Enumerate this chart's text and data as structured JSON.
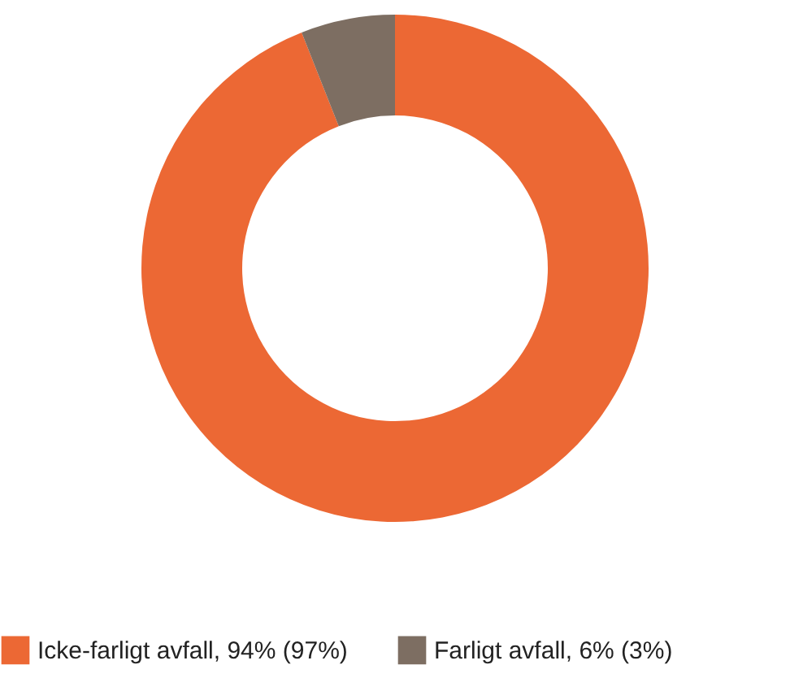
{
  "chart_data": {
    "type": "donut",
    "categories": [
      "Icke-farligt avfall, 94% (97%)",
      "Farligt avfall, 6% (3%)"
    ],
    "values": [
      94,
      6
    ],
    "colors": [
      "#ec6834",
      "#7d6e62"
    ],
    "legend": "bottom"
  }
}
